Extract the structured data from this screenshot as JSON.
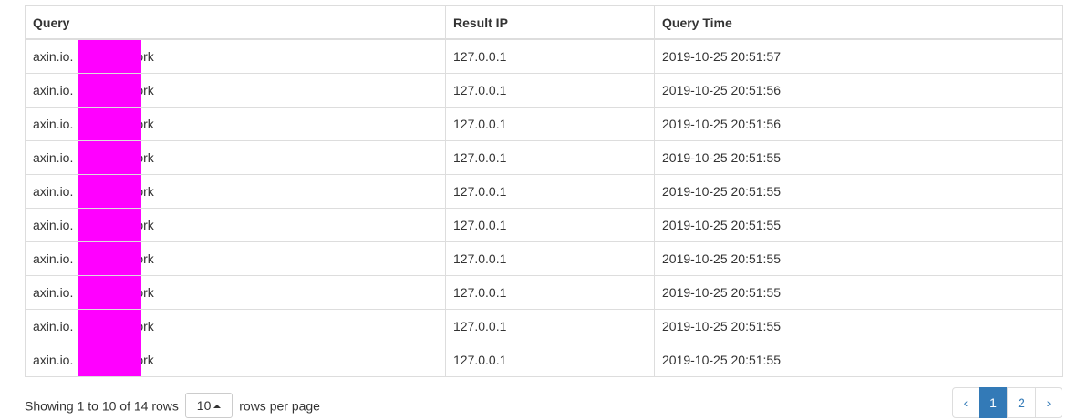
{
  "table": {
    "headers": [
      "Query",
      "Result IP",
      "Query Time"
    ],
    "rows": [
      {
        "query_prefix": "axin.io.",
        "query_suffix": "ork",
        "ip": "127.0.0.1",
        "time": "2019-10-25 20:51:57"
      },
      {
        "query_prefix": "axin.io.",
        "query_suffix": "ork",
        "ip": "127.0.0.1",
        "time": "2019-10-25 20:51:56"
      },
      {
        "query_prefix": "axin.io.",
        "query_suffix": "ork",
        "ip": "127.0.0.1",
        "time": "2019-10-25 20:51:56"
      },
      {
        "query_prefix": "axin.io.",
        "query_suffix": "ork",
        "ip": "127.0.0.1",
        "time": "2019-10-25 20:51:55"
      },
      {
        "query_prefix": "axin.io.",
        "query_suffix": "ork",
        "ip": "127.0.0.1",
        "time": "2019-10-25 20:51:55"
      },
      {
        "query_prefix": "axin.io.",
        "query_suffix": "ork",
        "ip": "127.0.0.1",
        "time": "2019-10-25 20:51:55"
      },
      {
        "query_prefix": "axin.io.",
        "query_suffix": "ork",
        "ip": "127.0.0.1",
        "time": "2019-10-25 20:51:55"
      },
      {
        "query_prefix": "axin.io.",
        "query_suffix": "ork",
        "ip": "127.0.0.1",
        "time": "2019-10-25 20:51:55"
      },
      {
        "query_prefix": "axin.io.",
        "query_suffix": "ork",
        "ip": "127.0.0.1",
        "time": "2019-10-25 20:51:55"
      },
      {
        "query_prefix": "axin.io.",
        "query_suffix": "ork",
        "ip": "127.0.0.1",
        "time": "2019-10-25 20:51:55"
      }
    ],
    "redaction_color": "#ff00ff"
  },
  "footer": {
    "showing_text": "Showing 1 to 10 of 14 rows",
    "page_size": "10",
    "rows_per_page_text": "rows per page"
  },
  "pagination": {
    "prev_icon": "‹",
    "pages": [
      "1",
      "2"
    ],
    "active_page": "1",
    "next_icon": "›",
    "accent_color": "#337ab7"
  }
}
